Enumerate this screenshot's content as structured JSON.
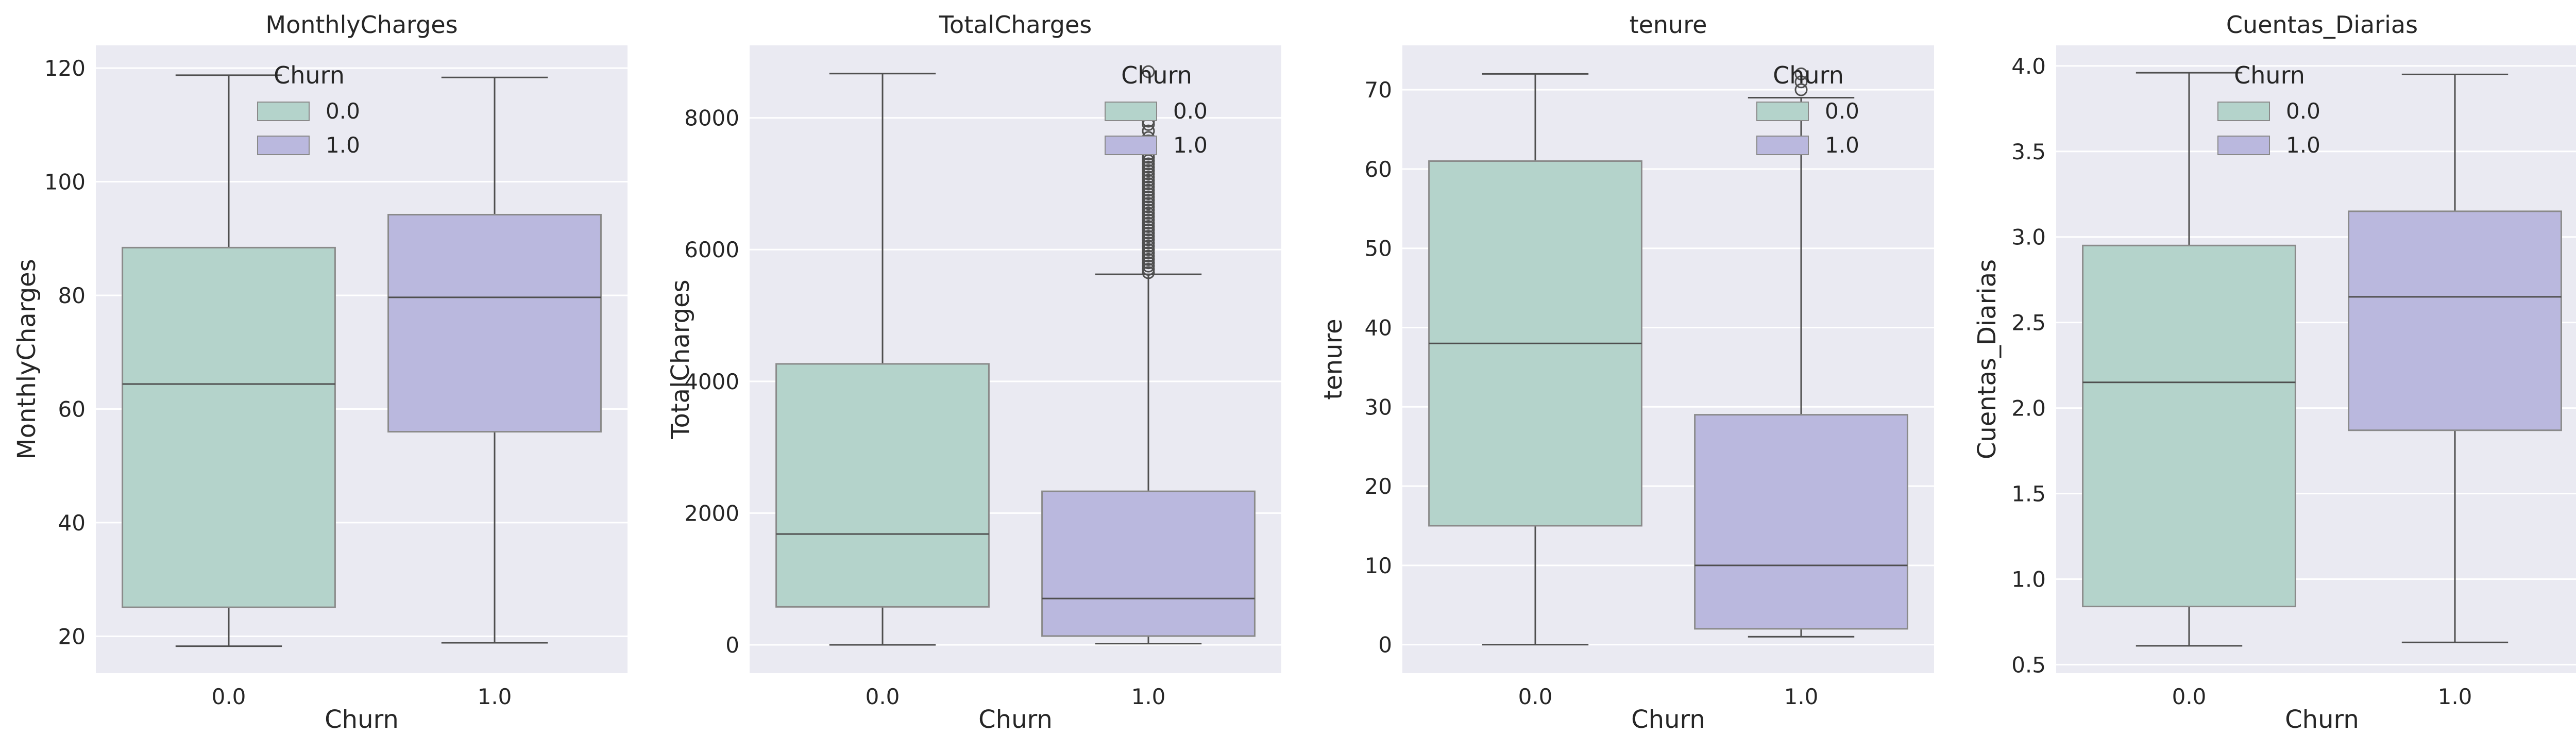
{
  "colors": {
    "background": "#eaeaf2",
    "grid": "#ffffff",
    "box_0": "#b4d3cb",
    "box_1": "#bab8de",
    "line": "#4f4f4f",
    "text": "#262626"
  },
  "legend_title": "Churn",
  "chart_data": [
    {
      "type": "box",
      "title": "MonthlyCharges",
      "xlabel": "Churn",
      "ylabel": "MonthlyCharges",
      "categories": [
        "0.0",
        "1.0"
      ],
      "ylim": [
        13.5,
        124
      ],
      "yticks": [
        20,
        40,
        60,
        80,
        100,
        120
      ],
      "ytick_labels": [
        "20",
        "40",
        "60",
        "80",
        "100",
        "120"
      ],
      "boxes": [
        {
          "name": "0.0",
          "whislo": 18.25,
          "q1": 25.1,
          "med": 64.4,
          "q3": 88.4,
          "whishi": 118.75,
          "fliers": []
        },
        {
          "name": "1.0",
          "whislo": 18.85,
          "q1": 56.0,
          "med": 79.65,
          "q3": 94.2,
          "whishi": 118.35,
          "fliers": []
        }
      ],
      "legend": {
        "title": "Churn",
        "placement": "top-center",
        "entries": [
          "0.0",
          "1.0"
        ]
      }
    },
    {
      "type": "box",
      "title": "TotalCharges",
      "xlabel": "Churn",
      "ylabel": "TotalCharges",
      "categories": [
        "0.0",
        "1.0"
      ],
      "ylim": [
        -430,
        9100
      ],
      "yticks": [
        0,
        2000,
        4000,
        6000,
        8000
      ],
      "ytick_labels": [
        "0",
        "2000",
        "4000",
        "6000",
        "8000"
      ],
      "boxes": [
        {
          "name": "0.0",
          "whislo": 0,
          "q1": 577,
          "med": 1683,
          "q3": 4265,
          "whishi": 8672,
          "fliers": []
        },
        {
          "name": "1.0",
          "whislo": 19,
          "q1": 134,
          "med": 704,
          "q3": 2331,
          "whishi": 5625,
          "fliers": [
            5650,
            5700,
            5750,
            5800,
            5850,
            5900,
            5950,
            6000,
            6050,
            6100,
            6150,
            6200,
            6250,
            6300,
            6350,
            6400,
            6450,
            6500,
            6550,
            6600,
            6650,
            6700,
            6750,
            6800,
            6850,
            6900,
            6950,
            7000,
            7050,
            7100,
            7150,
            7200,
            7250,
            7300,
            7350,
            7400,
            7450,
            7550,
            7650,
            7700,
            7800,
            7900,
            7950,
            8050,
            8100,
            8700
          ]
        }
      ],
      "legend": {
        "title": "Churn",
        "placement": "top-right",
        "entries": [
          "0.0",
          "1.0"
        ]
      }
    },
    {
      "type": "box",
      "title": "tenure",
      "xlabel": "Churn",
      "ylabel": "tenure",
      "categories": [
        "0.0",
        "1.0"
      ],
      "ylim": [
        -3.6,
        75.6
      ],
      "yticks": [
        0,
        10,
        20,
        30,
        40,
        50,
        60,
        70
      ],
      "ytick_labels": [
        "0",
        "10",
        "20",
        "30",
        "40",
        "50",
        "60",
        "70"
      ],
      "boxes": [
        {
          "name": "0.0",
          "whislo": 0,
          "q1": 15,
          "med": 38,
          "q3": 61,
          "whishi": 72,
          "fliers": []
        },
        {
          "name": "1.0",
          "whislo": 1,
          "q1": 2,
          "med": 10,
          "q3": 29,
          "whishi": 69,
          "fliers": [
            70,
            71,
            72
          ]
        }
      ],
      "legend": {
        "title": "Churn",
        "placement": "top-right",
        "entries": [
          "0.0",
          "1.0"
        ]
      }
    },
    {
      "type": "box",
      "title": "Cuentas_Diarias",
      "xlabel": "Churn",
      "ylabel": "Cuentas_Diarias",
      "categories": [
        "0.0",
        "1.0"
      ],
      "ylim": [
        0.45,
        4.12
      ],
      "yticks": [
        0.5,
        1.0,
        1.5,
        2.0,
        2.5,
        3.0,
        3.5,
        4.0
      ],
      "ytick_labels": [
        "0.5",
        "1.0",
        "1.5",
        "2.0",
        "2.5",
        "3.0",
        "3.5",
        "4.0"
      ],
      "boxes": [
        {
          "name": "0.0",
          "whislo": 0.61,
          "q1": 0.84,
          "med": 2.15,
          "q3": 2.95,
          "whishi": 3.96,
          "fliers": []
        },
        {
          "name": "1.0",
          "whislo": 0.63,
          "q1": 1.87,
          "med": 2.65,
          "q3": 3.15,
          "whishi": 3.95,
          "fliers": []
        }
      ],
      "legend": {
        "title": "Churn",
        "placement": "top-center",
        "entries": [
          "0.0",
          "1.0"
        ]
      }
    }
  ]
}
